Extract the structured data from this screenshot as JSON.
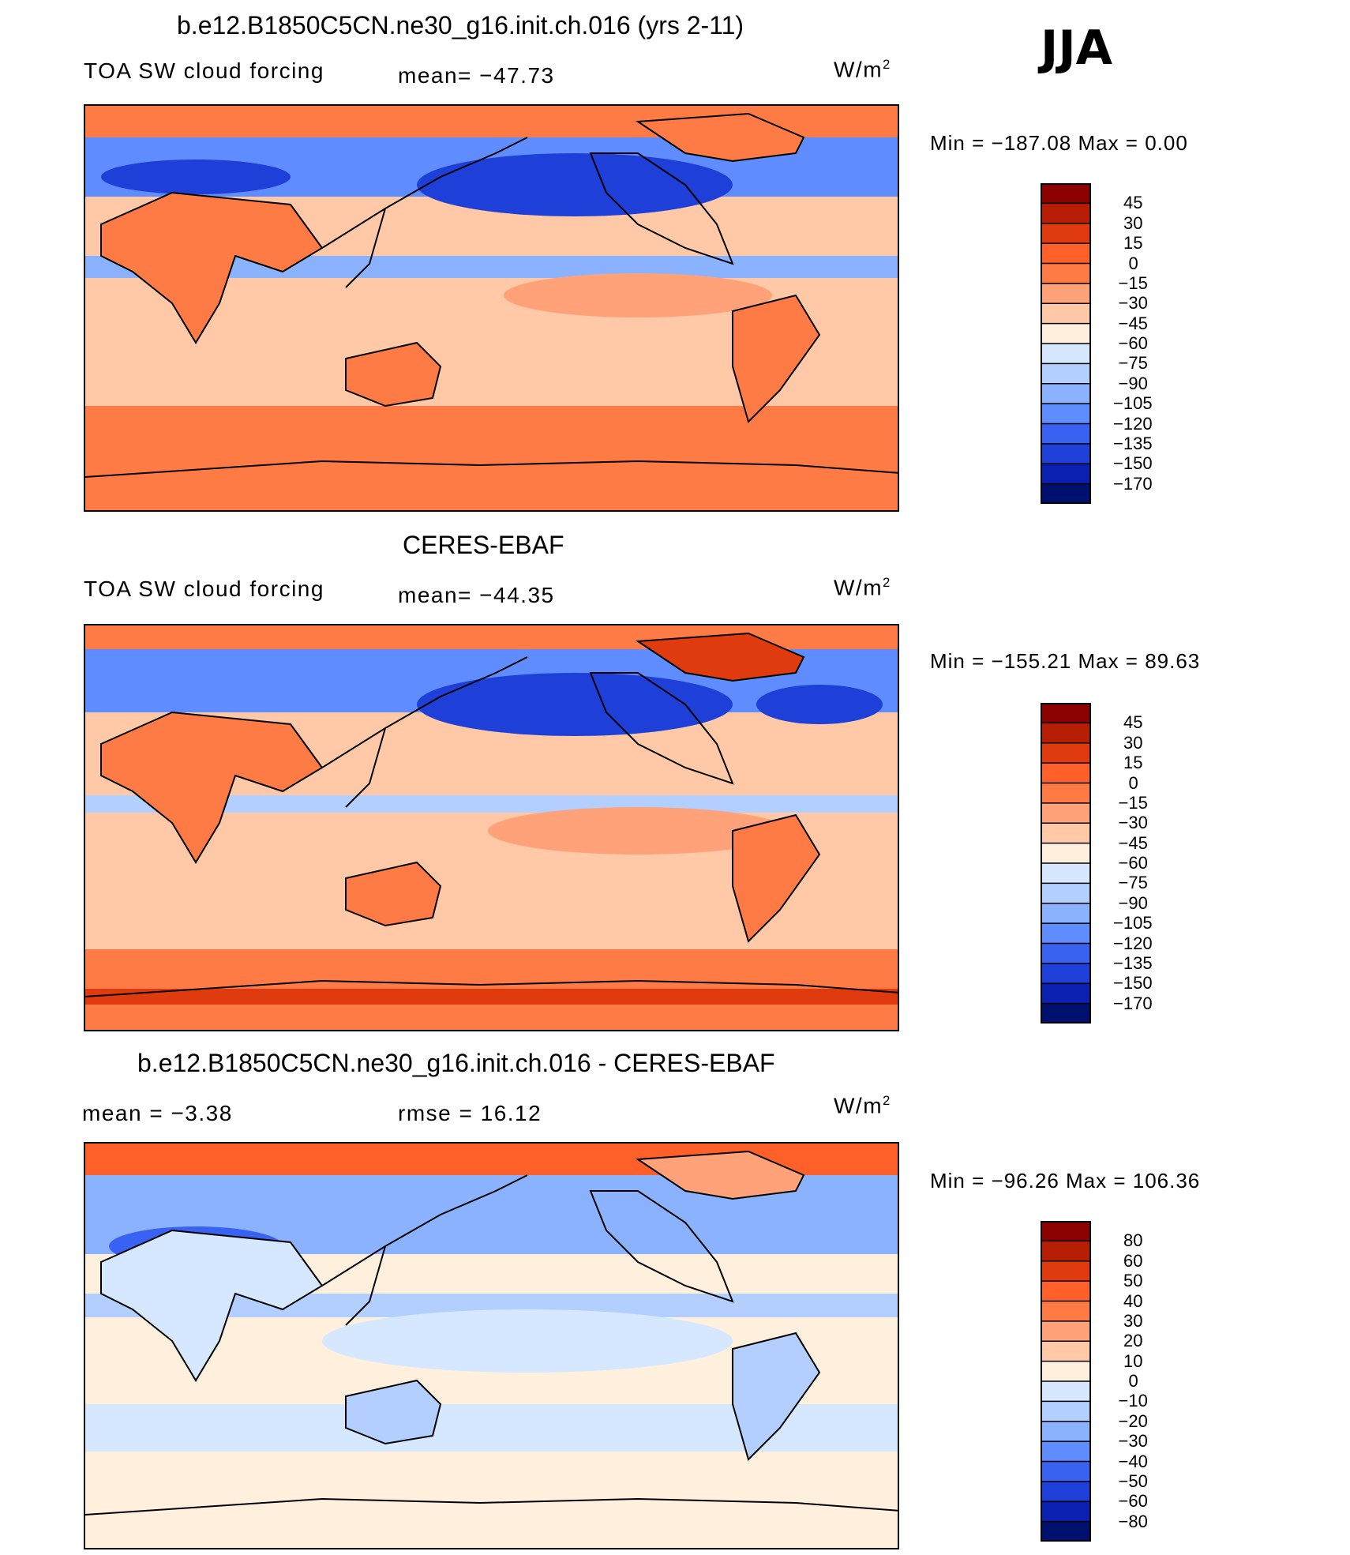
{
  "season": "JJA",
  "unit_text": "W/m",
  "unit_sup": "2",
  "panels": [
    {
      "title": "b.e12.B1850C5CN.ne30_g16.init.ch.016 (yrs 2-11)",
      "left_label": "TOA SW cloud forcing",
      "mid_label": "mean=  −47.73",
      "minmax": "Min  =  −187.08  Max  =     0.00",
      "levels": [
        "45",
        "30",
        "15",
        "0",
        "−15",
        "−30",
        "−45",
        "−60",
        "−75",
        "−90",
        "−105",
        "−120",
        "−135",
        "−150",
        "−170"
      ]
    },
    {
      "title": "CERES-EBAF",
      "left_label": "TOA SW cloud forcing",
      "mid_label": "mean=  −44.35",
      "minmax": "Min  =  −155.21  Max  =   89.63",
      "levels": [
        "45",
        "30",
        "15",
        "0",
        "−15",
        "−30",
        "−45",
        "−60",
        "−75",
        "−90",
        "−105",
        "−120",
        "−135",
        "−150",
        "−170"
      ]
    },
    {
      "title": "b.e12.B1850C5CN.ne30_g16.init.ch.016 - CERES-EBAF",
      "left_label": "mean  =    −3.38",
      "mid_label": "rmse  =    16.12",
      "minmax": "Min  =  −96.26  Max  =  106.36",
      "levels": [
        "80",
        "60",
        "50",
        "40",
        "30",
        "20",
        "10",
        "0",
        "−10",
        "−20",
        "−30",
        "−40",
        "−50",
        "−60",
        "−80"
      ]
    }
  ],
  "colorbar_colors": [
    "#8b0000",
    "#b81d05",
    "#e03a0f",
    "#ff5f28",
    "#ff7b45",
    "#ffa27a",
    "#ffc9a8",
    "#fff0de",
    "#d5e8ff",
    "#b2cfff",
    "#8ab2ff",
    "#5f8cff",
    "#3a62f2",
    "#1e3fd8",
    "#0b20b0",
    "#00106e"
  ],
  "map_colors": {
    "p1": {
      "polar": "#ff7b45",
      "midlat": "#ffc9a8",
      "storm": "#5f8cff",
      "storm_deep": "#1e3fd8",
      "itcz": "#8ab2ff",
      "subtrop": "#ffa27a",
      "land": "#ff7b45",
      "ice": "#ff7b45"
    },
    "p2": {
      "polar": "#ff7b45",
      "midlat": "#ffc9a8",
      "storm": "#5f8cff",
      "storm_deep": "#1e3fd8",
      "itcz": "#b2cfff",
      "subtrop": "#ffa27a",
      "land": "#ff7b45",
      "ice": "#e03a0f"
    },
    "p3": {
      "polar": "#ff5f28",
      "midlat": "#fff0de",
      "storm": "#8ab2ff",
      "storm_deep": "#3a62f2",
      "itcz": "#b2cfff",
      "subtrop": "#d5e8ff",
      "land": "#ffc9a8",
      "ice": "#ffa27a"
    }
  }
}
